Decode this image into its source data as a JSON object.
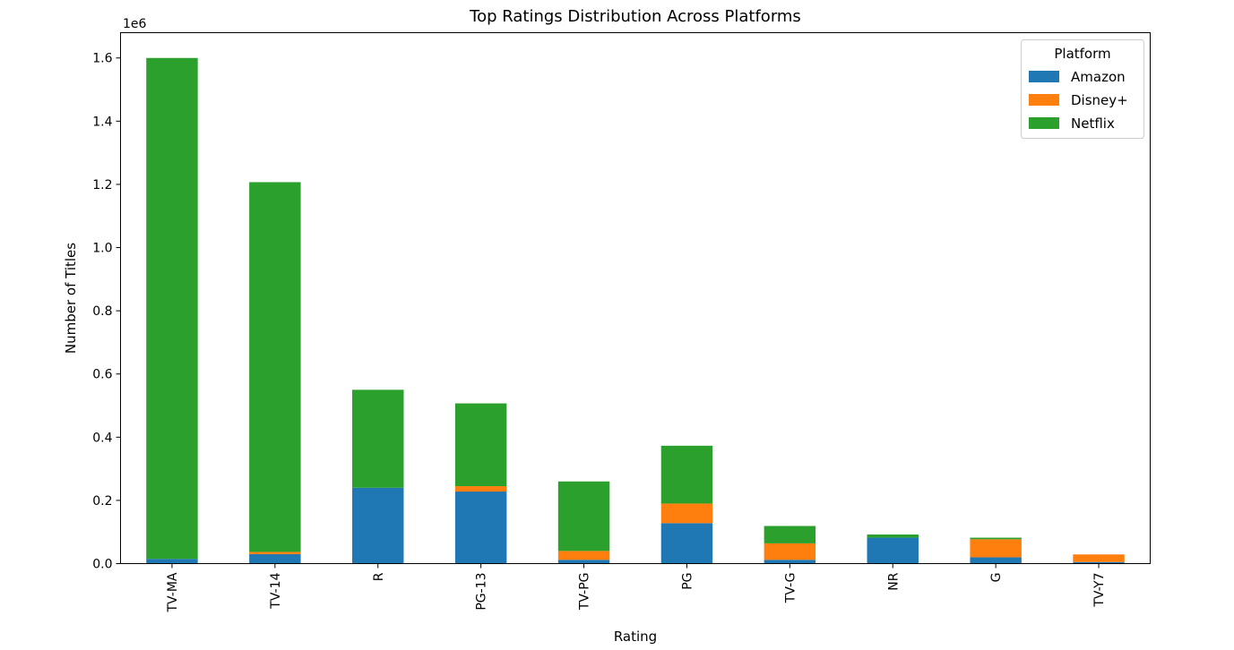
{
  "chart_data": {
    "type": "bar",
    "stacked": true,
    "title": "Top Ratings Distribution Across Platforms",
    "xlabel": "Rating",
    "ylabel": "Number of Titles",
    "offset_text": "1e6",
    "ylim": [
      0,
      1680000
    ],
    "yticks": [
      0,
      200000,
      400000,
      600000,
      800000,
      1000000,
      1200000,
      1400000,
      1600000
    ],
    "ytick_labels": [
      "0.0",
      "0.2",
      "0.4",
      "0.6",
      "0.8",
      "1.0",
      "1.2",
      "1.4",
      "1.6"
    ],
    "categories": [
      "TV-MA",
      "TV-14",
      "R",
      "PG-13",
      "TV-PG",
      "PG",
      "TV-G",
      "NR",
      "G",
      "TV-Y7"
    ],
    "series": [
      {
        "name": "Amazon",
        "color": "#1f77b4",
        "values": [
          15000,
          30000,
          240000,
          228000,
          12000,
          128000,
          12000,
          82000,
          20000,
          5000
        ]
      },
      {
        "name": "Disney+",
        "color": "#ff7f0e",
        "values": [
          0,
          7000,
          0,
          17000,
          28000,
          62000,
          52000,
          0,
          57000,
          24000
        ]
      },
      {
        "name": "Netflix",
        "color": "#2ca02c",
        "values": [
          1585000,
          1170000,
          310000,
          262000,
          220000,
          183000,
          55000,
          10000,
          5000,
          0
        ]
      }
    ],
    "legend": {
      "title": "Platform",
      "position": "top-right"
    },
    "grid": false
  }
}
